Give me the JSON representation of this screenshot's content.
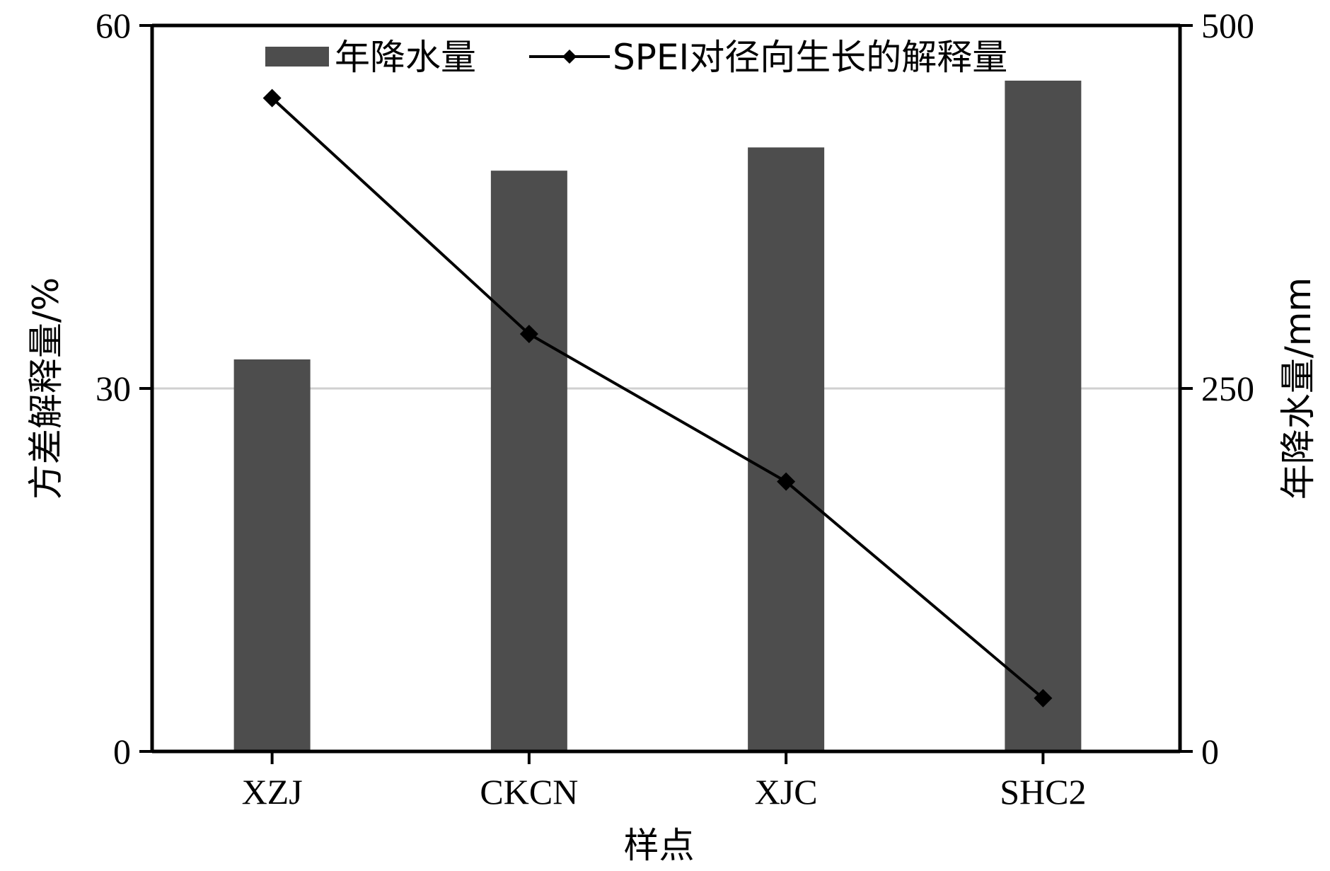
{
  "chart_data": {
    "type": "bar+line",
    "categories": [
      "XZJ",
      "CKCN",
      "XJC",
      "SHC2"
    ],
    "series": [
      {
        "name": "年降水量",
        "type": "bar",
        "axis": "right",
        "values": [
          270,
          400,
          416,
          462
        ],
        "color": "#4d4d4d"
      },
      {
        "name": "SPEI对径向生长的解释量",
        "type": "line",
        "axis": "left",
        "values": [
          54,
          34.5,
          22.3,
          4.4
        ],
        "color": "#000000",
        "marker": "diamond"
      }
    ],
    "xlabel": "样点",
    "ylabel_left": "方差解释量/%",
    "ylabel_right": "年降水量/mm",
    "ylim_left": [
      0,
      60
    ],
    "yticks_left": [
      "0",
      "30",
      "60"
    ],
    "ylim_right": [
      0,
      500
    ],
    "yticks_right": [
      "0",
      "250",
      "500"
    ],
    "grid": "horizontal line at middle tick",
    "legend_position": "top"
  }
}
